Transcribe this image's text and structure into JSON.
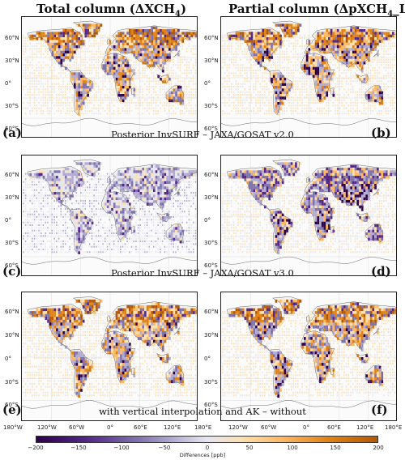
{
  "titles": {
    "left_main": "Total column (ΔXCH",
    "left_sub": "4",
    "left_tail": ")",
    "right_main": "Partial column (ΔpXCH",
    "right_sub": "4",
    "right_tail": "_LT)"
  },
  "panels": [
    {
      "letter": "(a)",
      "pattern": "mixed"
    },
    {
      "letter": "(b)",
      "pattern": "mixed_strong"
    },
    {
      "letter": "(c)",
      "pattern": "neg_light"
    },
    {
      "letter": "(d)",
      "pattern": "neg_strong"
    },
    {
      "letter": "(e)",
      "pattern": "mixed"
    },
    {
      "letter": "(f)",
      "pattern": "mixed"
    }
  ],
  "row_captions": [
    "Posterior InvSURF – JAXA/GOSAT v2.0",
    "Posterior InvSURF – JAXA/GOSAT v3.0",
    "with vertical interpolation and AK – without"
  ],
  "lat_labels": [
    "60°N",
    "30°N",
    "0°",
    "30°S",
    "60°S"
  ],
  "lon_labels": [
    "180°W",
    "120°W",
    "60°W",
    "0°",
    "60°E",
    "120°E",
    "180°E"
  ],
  "colorbar": {
    "ticks": [
      "−200",
      "−150",
      "−100",
      "−50",
      "0",
      "50",
      "100",
      "150",
      "200"
    ],
    "label": "Differences [ppb]",
    "colors": [
      "#2d004b",
      "#542788",
      "#8073ac",
      "#b2abd2",
      "#e6e6f0",
      "#fbe0b3",
      "#fdb863",
      "#e08214",
      "#b35806"
    ]
  }
}
